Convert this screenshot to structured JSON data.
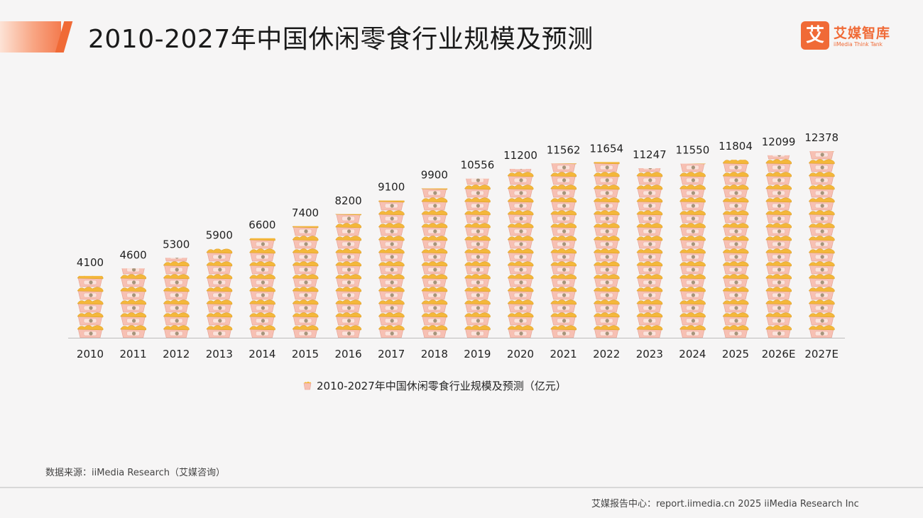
{
  "header": {
    "title": "2010-2027年中国休闲零食行业规模及预测"
  },
  "logo": {
    "mark": "艾",
    "name": "艾媒智库",
    "sub": "iiMedia Think Tank"
  },
  "chart_data": {
    "type": "bar",
    "title": "2010-2027年中国休闲零食行业规模及预测",
    "categories": [
      "2010",
      "2011",
      "2012",
      "2013",
      "2014",
      "2015",
      "2016",
      "2017",
      "2018",
      "2019",
      "2020",
      "2021",
      "2022",
      "2023",
      "2024",
      "2025",
      "2026E",
      "2027E"
    ],
    "series": [
      {
        "name": "2010-2027年中国休闲零食行业规模及预测（亿元）",
        "values": [
          4100,
          4600,
          5300,
          5900,
          6600,
          7400,
          8200,
          9100,
          9900,
          10556,
          11200,
          11562,
          11654,
          11247,
          11550,
          11804,
          12099,
          12378
        ]
      }
    ],
    "data_labels": [
      "4100",
      "4600",
      "5300",
      "5900",
      "6600",
      "7400",
      "8200",
      "9100",
      "9900",
      "10556",
      "11200",
      "11562",
      "11654",
      "11247",
      "11550",
      "11804",
      "12099",
      "12378"
    ],
    "ylim": [
      0,
      12378
    ],
    "grid": false,
    "legend_position": "bottom",
    "style": "pictorial stacked snack-bag icons",
    "colors": {
      "bag": "#f7c0b3",
      "snack": "#f4b73a",
      "accent": "#f06a36"
    }
  },
  "source": {
    "text": "数据来源：iiMedia Research（艾媒咨询）"
  },
  "footer": {
    "text": "艾媒报告中心：report.iimedia.cn  2025 iiMedia Research Inc"
  }
}
